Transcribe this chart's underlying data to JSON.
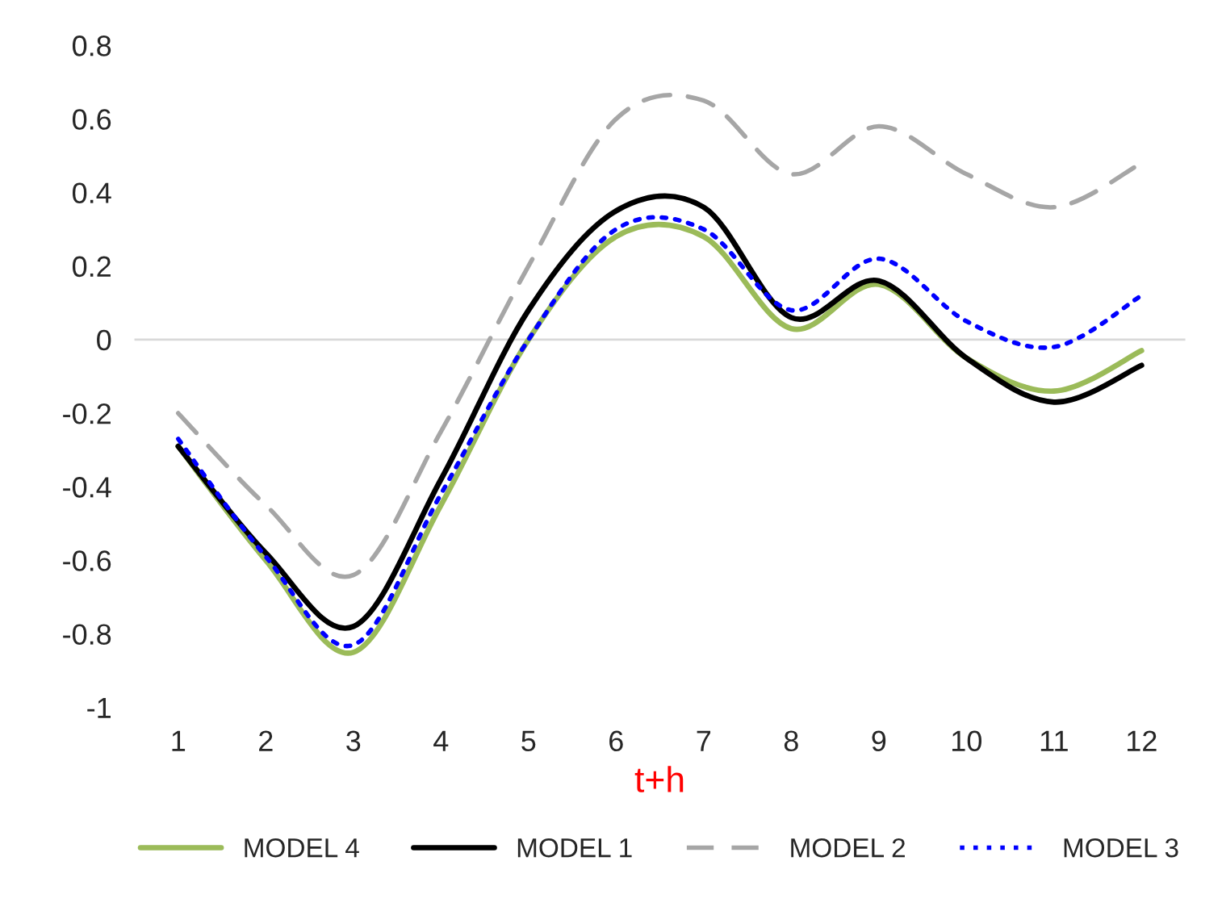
{
  "chart_data": {
    "type": "line",
    "xlabel": "t+h",
    "categories": [
      "1",
      "2",
      "3",
      "4",
      "5",
      "6",
      "7",
      "8",
      "9",
      "10",
      "11",
      "12"
    ],
    "series": [
      {
        "name": "MODEL 4",
        "color": "#9bbb59",
        "line_style": "solid",
        "values": [
          -0.29,
          -0.6,
          -0.85,
          -0.45,
          0.0,
          0.28,
          0.28,
          0.03,
          0.15,
          -0.05,
          -0.14,
          -0.03
        ]
      },
      {
        "name": "MODEL 1",
        "color": "#000000",
        "line_style": "solid",
        "values": [
          -0.29,
          -0.58,
          -0.78,
          -0.38,
          0.08,
          0.35,
          0.36,
          0.06,
          0.16,
          -0.05,
          -0.17,
          -0.07
        ]
      },
      {
        "name": "MODEL 2",
        "color": "#a6a6a6",
        "line_style": "dashed",
        "values": [
          -0.2,
          -0.45,
          -0.64,
          -0.25,
          0.2,
          0.6,
          0.65,
          0.45,
          0.58,
          0.45,
          0.36,
          0.48
        ]
      },
      {
        "name": "MODEL 3",
        "color": "#0000ff",
        "line_style": "dotted",
        "values": [
          -0.27,
          -0.59,
          -0.83,
          -0.42,
          0.0,
          0.3,
          0.3,
          0.08,
          0.22,
          0.05,
          -0.02,
          0.12
        ]
      }
    ],
    "ylim": [
      -1,
      0.8
    ],
    "yticks": [
      -1,
      -0.8,
      -0.6,
      -0.4,
      -0.2,
      0,
      0.2,
      0.4,
      0.6,
      0.8
    ],
    "ref_lines": [
      {
        "axis": "y",
        "value": 0,
        "color": "#d9d9d9"
      }
    ],
    "grid": false,
    "legend": "bottom",
    "marker": "none"
  }
}
